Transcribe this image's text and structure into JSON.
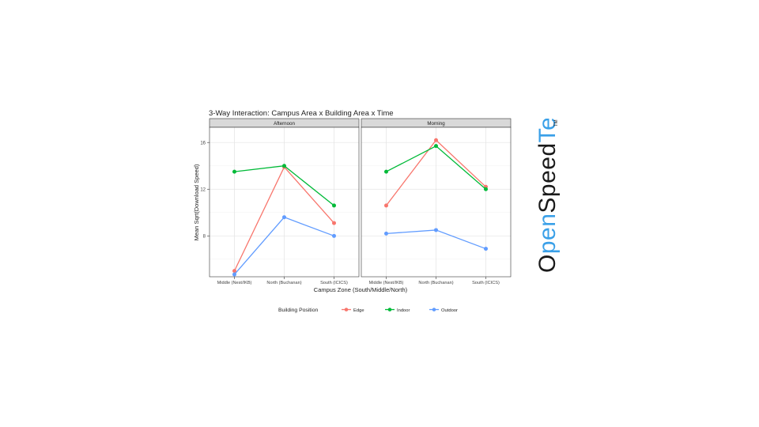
{
  "chart_data": {
    "type": "line",
    "title": "3-Way Interaction: Campus Area x Building Area x Time",
    "xlabel": "Campus Zone (South/Middle/North)",
    "ylabel": "Mean Sqrt(Download Speed)",
    "ylim": [
      4.5,
      17.3
    ],
    "yticks": [
      8,
      12,
      16
    ],
    "categories": [
      "Middle (Nest/IKB)",
      "North (Buchanan)",
      "South (ICICS)"
    ],
    "grid": true,
    "legend": {
      "title": "Building Position",
      "placement": "bottom"
    },
    "panels": [
      {
        "label": "Afternoon",
        "series": [
          {
            "name": "Edge",
            "color": "#F8766D",
            "values": [
              5.0,
              13.9,
              9.1
            ]
          },
          {
            "name": "Indoor",
            "color": "#00BA38",
            "values": [
              13.5,
              14.0,
              10.6
            ]
          },
          {
            "name": "Outdoor",
            "color": "#619CFF",
            "values": [
              4.7,
              9.6,
              8.0
            ]
          }
        ]
      },
      {
        "label": "Morning",
        "series": [
          {
            "name": "Edge",
            "color": "#F8766D",
            "values": [
              10.6,
              16.2,
              12.2
            ]
          },
          {
            "name": "Indoor",
            "color": "#00BA38",
            "values": [
              13.5,
              15.7,
              12.0
            ]
          },
          {
            "name": "Outdoor",
            "color": "#619CFF",
            "values": [
              8.2,
              8.5,
              6.9
            ]
          }
        ]
      }
    ]
  },
  "logo": {
    "text": "OpenSpeedTest",
    "text_parts": [
      "O",
      "pen",
      "Speed",
      "Test"
    ],
    "tm": "TM",
    "colors": {
      "dark": "#1a1a1a",
      "blue": "#3aa0e8"
    }
  }
}
